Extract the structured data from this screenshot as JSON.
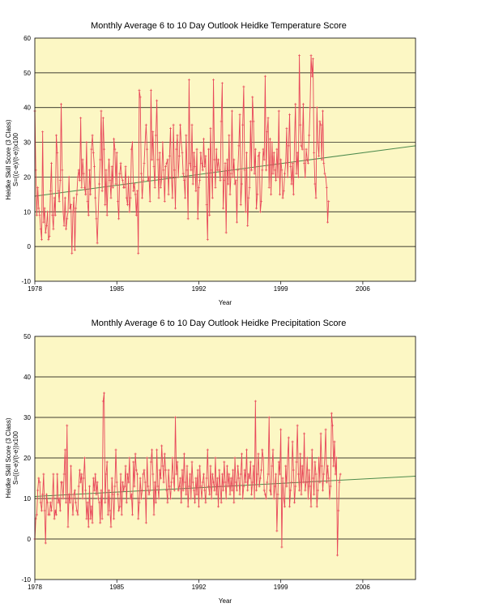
{
  "colors": {
    "plot_background": "#fcf7c4",
    "series_line": "#e8485a",
    "trend_line": "#4d8a4d",
    "grid": "#000000"
  },
  "chart_data": [
    {
      "type": "line",
      "title": "Monthly Average 6 to 10 Day Outlook Heidke Temperature Score",
      "xlabel": "Year",
      "ylabel_line1": "Heidke Skill Score (3 Class)",
      "ylabel_line2": "S=((c-e)/(t-e))x100",
      "xlim": [
        1978,
        2010.5
      ],
      "ylim": [
        -10,
        60
      ],
      "x_ticks": [
        1978,
        1985,
        1992,
        1999,
        2006
      ],
      "y_ticks": [
        -10,
        0,
        10,
        20,
        30,
        40,
        50,
        60
      ],
      "grid": "horizontal",
      "trend": {
        "x": [
          1978,
          2010.5
        ],
        "y": [
          14.5,
          29
        ]
      },
      "series": [
        {
          "start": 1978,
          "step": 0.08333,
          "values": [
            39,
            22,
            9,
            17,
            11,
            9,
            5,
            2,
            33,
            7,
            11,
            4,
            6,
            10,
            2,
            3,
            16,
            24,
            9,
            5,
            14,
            9,
            32,
            27,
            16,
            13,
            19,
            41,
            22,
            10,
            6,
            14,
            5,
            8,
            10,
            20,
            11,
            12,
            -2,
            10,
            14,
            -1,
            11,
            15,
            20,
            22,
            19,
            37,
            17,
            25,
            21,
            17,
            15,
            30,
            13,
            9,
            22,
            15,
            28,
            32,
            27,
            23,
            14,
            8,
            1,
            10,
            18,
            25,
            39,
            16,
            37,
            28,
            12,
            22,
            9,
            20,
            25,
            19,
            14,
            23,
            17,
            31,
            28,
            18,
            27,
            13,
            8,
            21,
            24,
            20,
            19,
            17,
            17,
            23,
            14,
            12,
            20,
            10,
            14,
            28,
            30,
            16,
            18,
            15,
            9,
            16,
            -2,
            45,
            43,
            21,
            14,
            19,
            24,
            30,
            35,
            28,
            19,
            20,
            13,
            45,
            25,
            33,
            23,
            17,
            32,
            42,
            25,
            14,
            27,
            17,
            20,
            30,
            22,
            13,
            23,
            24,
            25,
            15,
            26,
            34,
            20,
            14,
            35,
            22,
            11,
            28,
            32,
            20,
            26,
            35,
            30,
            27,
            21,
            19,
            14,
            32,
            22,
            8,
            48,
            24,
            22,
            35,
            18,
            27,
            23,
            16,
            28,
            8,
            17,
            19,
            27,
            24,
            22,
            31,
            23,
            26,
            12,
            2,
            28,
            9,
            34,
            22,
            14,
            48,
            25,
            17,
            28,
            22,
            25,
            22,
            19,
            36,
            47,
            11,
            19,
            24,
            4,
            25,
            18,
            32,
            15,
            21,
            39,
            20,
            25,
            18,
            19,
            7,
            22,
            29,
            38,
            12,
            18,
            35,
            46,
            22,
            10,
            27,
            6,
            14,
            17,
            36,
            22,
            43,
            36,
            21,
            28,
            11,
            15,
            26,
            27,
            10,
            13,
            22,
            28,
            25,
            49,
            22,
            33,
            37,
            17,
            31,
            15,
            30,
            21,
            27,
            22,
            19,
            28,
            20,
            39,
            15,
            25,
            22,
            14,
            16,
            21,
            24,
            34,
            20,
            29,
            38,
            23,
            18,
            24,
            15,
            30,
            41,
            21,
            27,
            20,
            55,
            35,
            29,
            28,
            41,
            24,
            20,
            28,
            25,
            24,
            32,
            40,
            55,
            49,
            54,
            27,
            18,
            14,
            40,
            30,
            26,
            36,
            35,
            25,
            39,
            24,
            21,
            20,
            17,
            7,
            13
          ]
        }
      ]
    },
    {
      "type": "line",
      "title": "Monthly Average 6 to 10 Day Outlook Heidke Precipitation Score",
      "xlabel": "Year",
      "ylabel_line1": "Heidke Skill Score (3 Class)",
      "ylabel_line2": "S=((c-e)/(t-e))x100",
      "xlim": [
        1978,
        2010.5
      ],
      "ylim": [
        -10,
        50
      ],
      "x_ticks": [
        1978,
        1985,
        1992,
        1999,
        2006
      ],
      "y_ticks": [
        -10,
        0,
        10,
        20,
        30,
        40,
        50
      ],
      "grid": "horizontal",
      "trend": {
        "x": [
          1978,
          2010.5
        ],
        "y": [
          10.5,
          15.5
        ]
      },
      "series": [
        {
          "start": 1978,
          "step": 0.08333,
          "values": [
            0,
            5,
            6,
            12,
            15,
            14,
            9,
            7,
            11,
            16,
            7,
            -1,
            11,
            9,
            6,
            6,
            9,
            7,
            10,
            16,
            5,
            7,
            6,
            16,
            9,
            10,
            7,
            14,
            14,
            10,
            16,
            22,
            9,
            28,
            3,
            11,
            9,
            18,
            10,
            6,
            11,
            12,
            9,
            7,
            6,
            13,
            17,
            14,
            16,
            10,
            15,
            20,
            12,
            5,
            9,
            3,
            13,
            5,
            8,
            4,
            15,
            12,
            16,
            11,
            14,
            10,
            9,
            4,
            12,
            5,
            34,
            36,
            9,
            16,
            19,
            6,
            12,
            7,
            3,
            15,
            11,
            5,
            13,
            22,
            14,
            11,
            7,
            8,
            16,
            6,
            14,
            12,
            13,
            18,
            9,
            16,
            14,
            20,
            10,
            11,
            6,
            19,
            13,
            21,
            17,
            16,
            5,
            9,
            15,
            10,
            12,
            16,
            17,
            14,
            4,
            20,
            13,
            11,
            12,
            19,
            22,
            16,
            6,
            14,
            9,
            22,
            13,
            10,
            17,
            15,
            23,
            18,
            14,
            21,
            17,
            12,
            9,
            17,
            13,
            10,
            14,
            20,
            15,
            12,
            30,
            16,
            19,
            12,
            13,
            15,
            9,
            17,
            12,
            21,
            14,
            11,
            18,
            8,
            13,
            16,
            10,
            19,
            14,
            12,
            9,
            15,
            11,
            17,
            8,
            18,
            13,
            10,
            14,
            16,
            12,
            9,
            15,
            22,
            13,
            11,
            18,
            10,
            16,
            14,
            12,
            20,
            11,
            15,
            8,
            17,
            13,
            9,
            16,
            12,
            19,
            14,
            10,
            18,
            13,
            16,
            11,
            15,
            12,
            17,
            9,
            20,
            14,
            12,
            18,
            15,
            11,
            16,
            21,
            10,
            13,
            17,
            14,
            22,
            12,
            16,
            15,
            19,
            11,
            14,
            18,
            10,
            34,
            12,
            16,
            21,
            13,
            15,
            17,
            22,
            20,
            12,
            11,
            10,
            14,
            16,
            30,
            12,
            11,
            18,
            22,
            10,
            13,
            16,
            2,
            11,
            19,
            16,
            27,
            -2,
            15,
            10,
            8,
            18,
            13,
            20,
            25,
            8,
            12,
            14,
            24,
            17,
            9,
            13,
            19,
            28,
            16,
            12,
            21,
            11,
            18,
            14,
            26,
            12,
            14,
            20,
            10,
            17,
            13,
            8,
            22,
            15,
            11,
            19,
            16,
            8,
            12,
            20,
            14,
            26,
            18,
            12,
            16,
            20,
            27,
            14,
            18,
            15,
            10,
            13,
            31,
            28,
            18,
            24,
            16,
            20,
            -4,
            7,
            14,
            16
          ]
        }
      ]
    }
  ]
}
